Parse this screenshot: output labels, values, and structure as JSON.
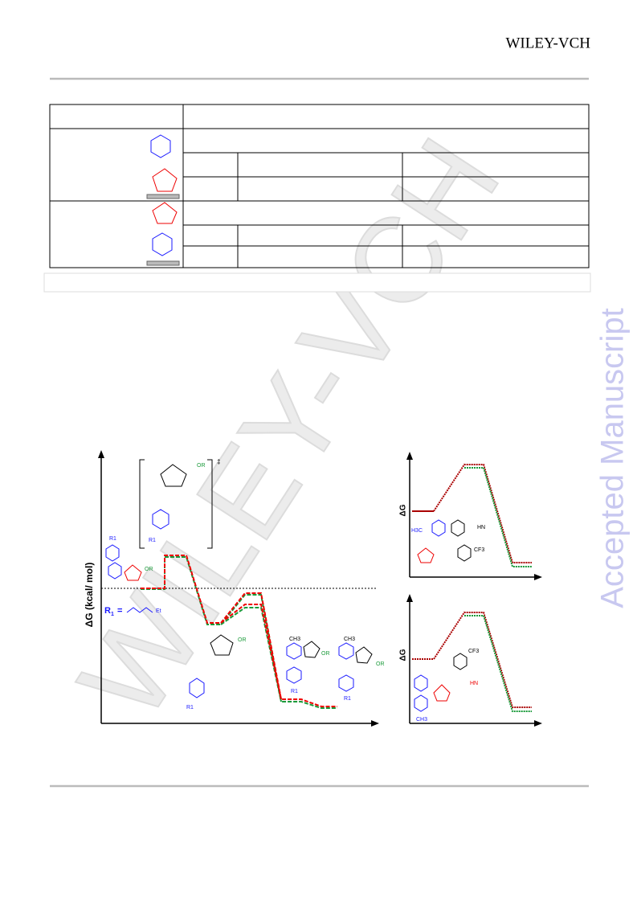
{
  "header": {
    "publisher": "WILEY-VCH"
  },
  "side_label": "Accepted Manuscript",
  "watermark": "WILEY-VCH",
  "figure": {
    "main_axis_label": "ΔG (kcal/ mol)",
    "substituent": {
      "symbol": "R",
      "index": "1",
      "equals": "=",
      "group_end": "Et"
    },
    "side_axis_labels": [
      "ΔG",
      "ΔG"
    ],
    "ts_mark": "‡",
    "ether_labels": [
      "OR",
      "OR",
      "OR",
      "OR",
      "OR"
    ],
    "methyl_labels": [
      "CH3",
      "CH3",
      "H3C",
      "CH3"
    ],
    "trifluoromethyl_labels": [
      "CF3",
      "CF3"
    ],
    "amine_labels": [
      "HN",
      "HN"
    ],
    "aryl_labels": [
      "R1",
      "R1",
      "R1",
      "R1",
      "R1"
    ]
  }
}
